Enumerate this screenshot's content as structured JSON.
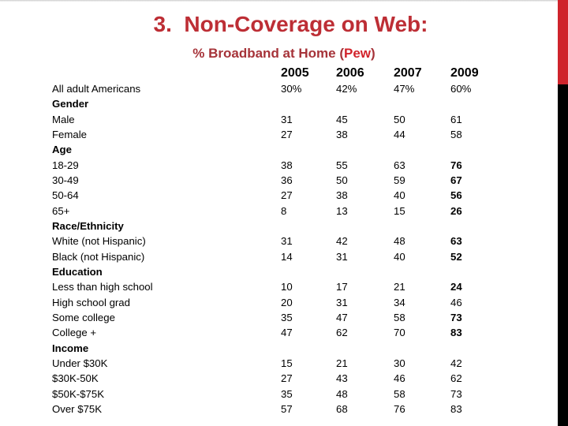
{
  "slide": {
    "title": "3.  Non-Coverage on Web:",
    "subtitle": {
      "prefix": "% Broadband at Home (",
      "highlight": "Pew",
      "suffix": ")"
    }
  },
  "colors": {
    "title_red": "#bd2e35",
    "subtitle_red": "#a63339",
    "pew_red": "#d2232b",
    "bar_red": "#cf242c",
    "bar_black": "#000000",
    "text": "#000000"
  },
  "table": {
    "year_headers": [
      "2005",
      "2006",
      "2007",
      "2009"
    ],
    "rows": [
      {
        "label": "All adult Americans",
        "type": "data",
        "values": [
          "30%",
          "42%",
          "47%",
          "60%"
        ],
        "emphasis_2009": false
      },
      {
        "label": "Gender",
        "type": "group"
      },
      {
        "label": "Male",
        "type": "data",
        "values": [
          "31",
          "45",
          "50",
          "61"
        ],
        "emphasis_2009": false
      },
      {
        "label": "Female",
        "type": "data",
        "values": [
          "27",
          "38",
          "44",
          "58"
        ],
        "emphasis_2009": false
      },
      {
        "label": "Age",
        "type": "group"
      },
      {
        "label": "18-29",
        "type": "data",
        "values": [
          "38",
          "55",
          "63",
          "76"
        ],
        "emphasis_2009": true
      },
      {
        "label": "30-49",
        "type": "data",
        "values": [
          "36",
          "50",
          "59",
          "67"
        ],
        "emphasis_2009": true
      },
      {
        "label": "50-64",
        "type": "data",
        "values": [
          "27",
          "38",
          "40",
          "56"
        ],
        "emphasis_2009": true
      },
      {
        "label": "65+",
        "type": "data",
        "values": [
          "8",
          "13",
          "15",
          "26"
        ],
        "emphasis_2009": true
      },
      {
        "label": "Race/Ethnicity",
        "type": "group"
      },
      {
        "label": "White (not Hispanic)",
        "type": "data",
        "values": [
          "31",
          "42",
          "48",
          "63"
        ],
        "emphasis_2009": true
      },
      {
        "label": "Black (not Hispanic)",
        "type": "data",
        "values": [
          "14",
          "31",
          "40",
          "52"
        ],
        "emphasis_2009": true
      },
      {
        "label": "Education",
        "type": "group"
      },
      {
        "label": "Less than high school",
        "type": "data",
        "values": [
          "10",
          "17",
          "21",
          "24"
        ],
        "emphasis_2009": true
      },
      {
        "label": "High school grad",
        "type": "data",
        "values": [
          "20",
          "31",
          "34",
          "46"
        ],
        "emphasis_2009": false
      },
      {
        "label": "Some college",
        "type": "data",
        "values": [
          "35",
          "47",
          "58",
          "73"
        ],
        "emphasis_2009": true
      },
      {
        "label": "College +",
        "type": "data",
        "values": [
          "47",
          "62",
          "70",
          "83"
        ],
        "emphasis_2009": true
      },
      {
        "label": "Income",
        "type": "group"
      },
      {
        "label": "Under $30K",
        "type": "data",
        "values": [
          "15",
          "21",
          "30",
          "42"
        ],
        "emphasis_2009": false
      },
      {
        "label": "$30K-50K",
        "type": "data",
        "values": [
          "27",
          "43",
          "46",
          "62"
        ],
        "emphasis_2009": false
      },
      {
        "label": "$50K-$75K",
        "type": "data",
        "values": [
          "35",
          "48",
          "58",
          "73"
        ],
        "emphasis_2009": false
      },
      {
        "label": "Over $75K",
        "type": "data",
        "values": [
          "57",
          "68",
          "76",
          "83"
        ],
        "emphasis_2009": false
      }
    ]
  }
}
